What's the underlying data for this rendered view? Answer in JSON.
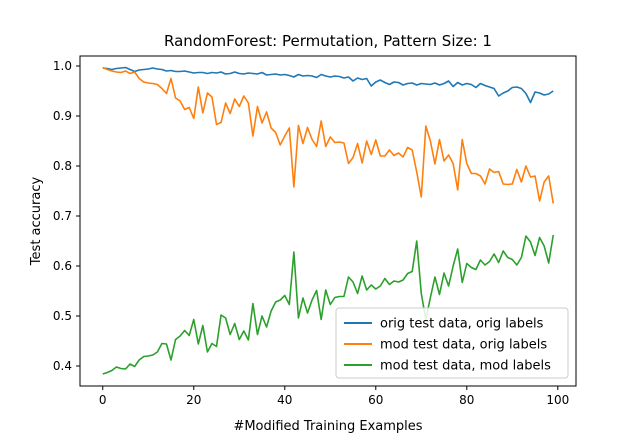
{
  "chart_data": {
    "type": "line",
    "title": "RandomForest: Permutation, Pattern Size: 1",
    "xlabel": "#Modified Training Examples",
    "ylabel": "Test accuracy",
    "xlim": [
      -5,
      104
    ],
    "ylim": [
      0.36,
      1.02
    ],
    "xticks": [
      0,
      20,
      40,
      60,
      80,
      100
    ],
    "yticks": [
      0.4,
      0.5,
      0.6,
      0.7,
      0.8,
      0.9,
      1.0
    ],
    "xtick_labels": [
      "0",
      "20",
      "40",
      "60",
      "80",
      "100"
    ],
    "ytick_labels": [
      "0.4",
      "0.5",
      "0.6",
      "0.7",
      "0.8",
      "0.9",
      "1.0"
    ],
    "grid": false,
    "legend_position": "lower-right",
    "x": [
      0,
      1,
      2,
      3,
      4,
      5,
      6,
      7,
      8,
      9,
      10,
      11,
      12,
      13,
      14,
      15,
      16,
      17,
      18,
      19,
      20,
      21,
      22,
      23,
      24,
      25,
      26,
      27,
      28,
      29,
      30,
      31,
      32,
      33,
      34,
      35,
      36,
      37,
      38,
      39,
      40,
      41,
      42,
      43,
      44,
      45,
      46,
      47,
      48,
      49,
      50,
      51,
      52,
      53,
      54,
      55,
      56,
      57,
      58,
      59,
      60,
      61,
      62,
      63,
      64,
      65,
      66,
      67,
      68,
      69,
      70,
      71,
      72,
      73,
      74,
      75,
      76,
      77,
      78,
      79,
      80,
      81,
      82,
      83,
      84,
      85,
      86,
      87,
      88,
      89,
      90,
      91,
      92,
      93,
      94,
      95,
      96,
      97,
      98,
      99
    ],
    "series": [
      {
        "name": "orig test data, orig labels",
        "color": "#1f77b4",
        "values": [
          0.996,
          0.995,
          0.993,
          0.995,
          0.996,
          0.997,
          0.993,
          0.989,
          0.992,
          0.993,
          0.994,
          0.996,
          0.994,
          0.993,
          0.99,
          0.991,
          0.989,
          0.989,
          0.99,
          0.988,
          0.986,
          0.987,
          0.987,
          0.985,
          0.987,
          0.986,
          0.988,
          0.984,
          0.985,
          0.988,
          0.985,
          0.984,
          0.986,
          0.985,
          0.984,
          0.987,
          0.982,
          0.983,
          0.984,
          0.982,
          0.983,
          0.981,
          0.978,
          0.983,
          0.98,
          0.981,
          0.98,
          0.977,
          0.983,
          0.98,
          0.978,
          0.98,
          0.979,
          0.976,
          0.978,
          0.97,
          0.976,
          0.973,
          0.975,
          0.96,
          0.968,
          0.972,
          0.967,
          0.963,
          0.968,
          0.967,
          0.962,
          0.965,
          0.966,
          0.962,
          0.965,
          0.964,
          0.963,
          0.966,
          0.962,
          0.965,
          0.97,
          0.959,
          0.967,
          0.962,
          0.965,
          0.963,
          0.957,
          0.965,
          0.961,
          0.958,
          0.955,
          0.94,
          0.946,
          0.95,
          0.957,
          0.958,
          0.955,
          0.945,
          0.927,
          0.948,
          0.946,
          0.942,
          0.944,
          0.95
        ]
      },
      {
        "name": "mod test data, orig labels",
        "color": "#ff7f0e",
        "values": [
          0.997,
          0.993,
          0.99,
          0.988,
          0.987,
          0.99,
          0.985,
          0.988,
          0.975,
          0.968,
          0.966,
          0.965,
          0.963,
          0.955,
          0.945,
          0.975,
          0.936,
          0.93,
          0.913,
          0.917,
          0.895,
          0.958,
          0.906,
          0.946,
          0.938,
          0.883,
          0.887,
          0.926,
          0.905,
          0.934,
          0.919,
          0.94,
          0.926,
          0.86,
          0.919,
          0.886,
          0.908,
          0.876,
          0.867,
          0.842,
          0.86,
          0.876,
          0.758,
          0.881,
          0.845,
          0.877,
          0.853,
          0.839,
          0.89,
          0.839,
          0.858,
          0.847,
          0.848,
          0.846,
          0.805,
          0.817,
          0.845,
          0.806,
          0.85,
          0.823,
          0.852,
          0.82,
          0.82,
          0.832,
          0.821,
          0.826,
          0.818,
          0.837,
          0.832,
          0.788,
          0.738,
          0.88,
          0.85,
          0.804,
          0.853,
          0.81,
          0.822,
          0.805,
          0.752,
          0.853,
          0.805,
          0.785,
          0.785,
          0.78,
          0.764,
          0.794,
          0.787,
          0.789,
          0.764,
          0.763,
          0.764,
          0.793,
          0.768,
          0.8,
          0.778,
          0.78,
          0.73,
          0.768,
          0.78,
          0.725
        ]
      },
      {
        "name": "mod test data, mod labels",
        "color": "#2ca02c",
        "values": [
          0.384,
          0.387,
          0.391,
          0.398,
          0.395,
          0.394,
          0.404,
          0.399,
          0.412,
          0.419,
          0.42,
          0.422,
          0.428,
          0.445,
          0.444,
          0.412,
          0.453,
          0.46,
          0.471,
          0.461,
          0.493,
          0.444,
          0.481,
          0.428,
          0.445,
          0.439,
          0.502,
          0.496,
          0.463,
          0.485,
          0.453,
          0.47,
          0.452,
          0.525,
          0.463,
          0.5,
          0.478,
          0.51,
          0.528,
          0.532,
          0.541,
          0.523,
          0.628,
          0.496,
          0.536,
          0.506,
          0.532,
          0.551,
          0.493,
          0.552,
          0.523,
          0.537,
          0.539,
          0.539,
          0.578,
          0.568,
          0.545,
          0.58,
          0.552,
          0.562,
          0.554,
          0.56,
          0.575,
          0.563,
          0.57,
          0.568,
          0.572,
          0.585,
          0.589,
          0.65,
          0.545,
          0.493,
          0.537,
          0.578,
          0.543,
          0.586,
          0.56,
          0.6,
          0.634,
          0.567,
          0.605,
          0.597,
          0.593,
          0.612,
          0.602,
          0.609,
          0.624,
          0.607,
          0.63,
          0.617,
          0.613,
          0.602,
          0.617,
          0.66,
          0.648,
          0.621,
          0.657,
          0.64,
          0.606,
          0.662
        ]
      }
    ]
  }
}
